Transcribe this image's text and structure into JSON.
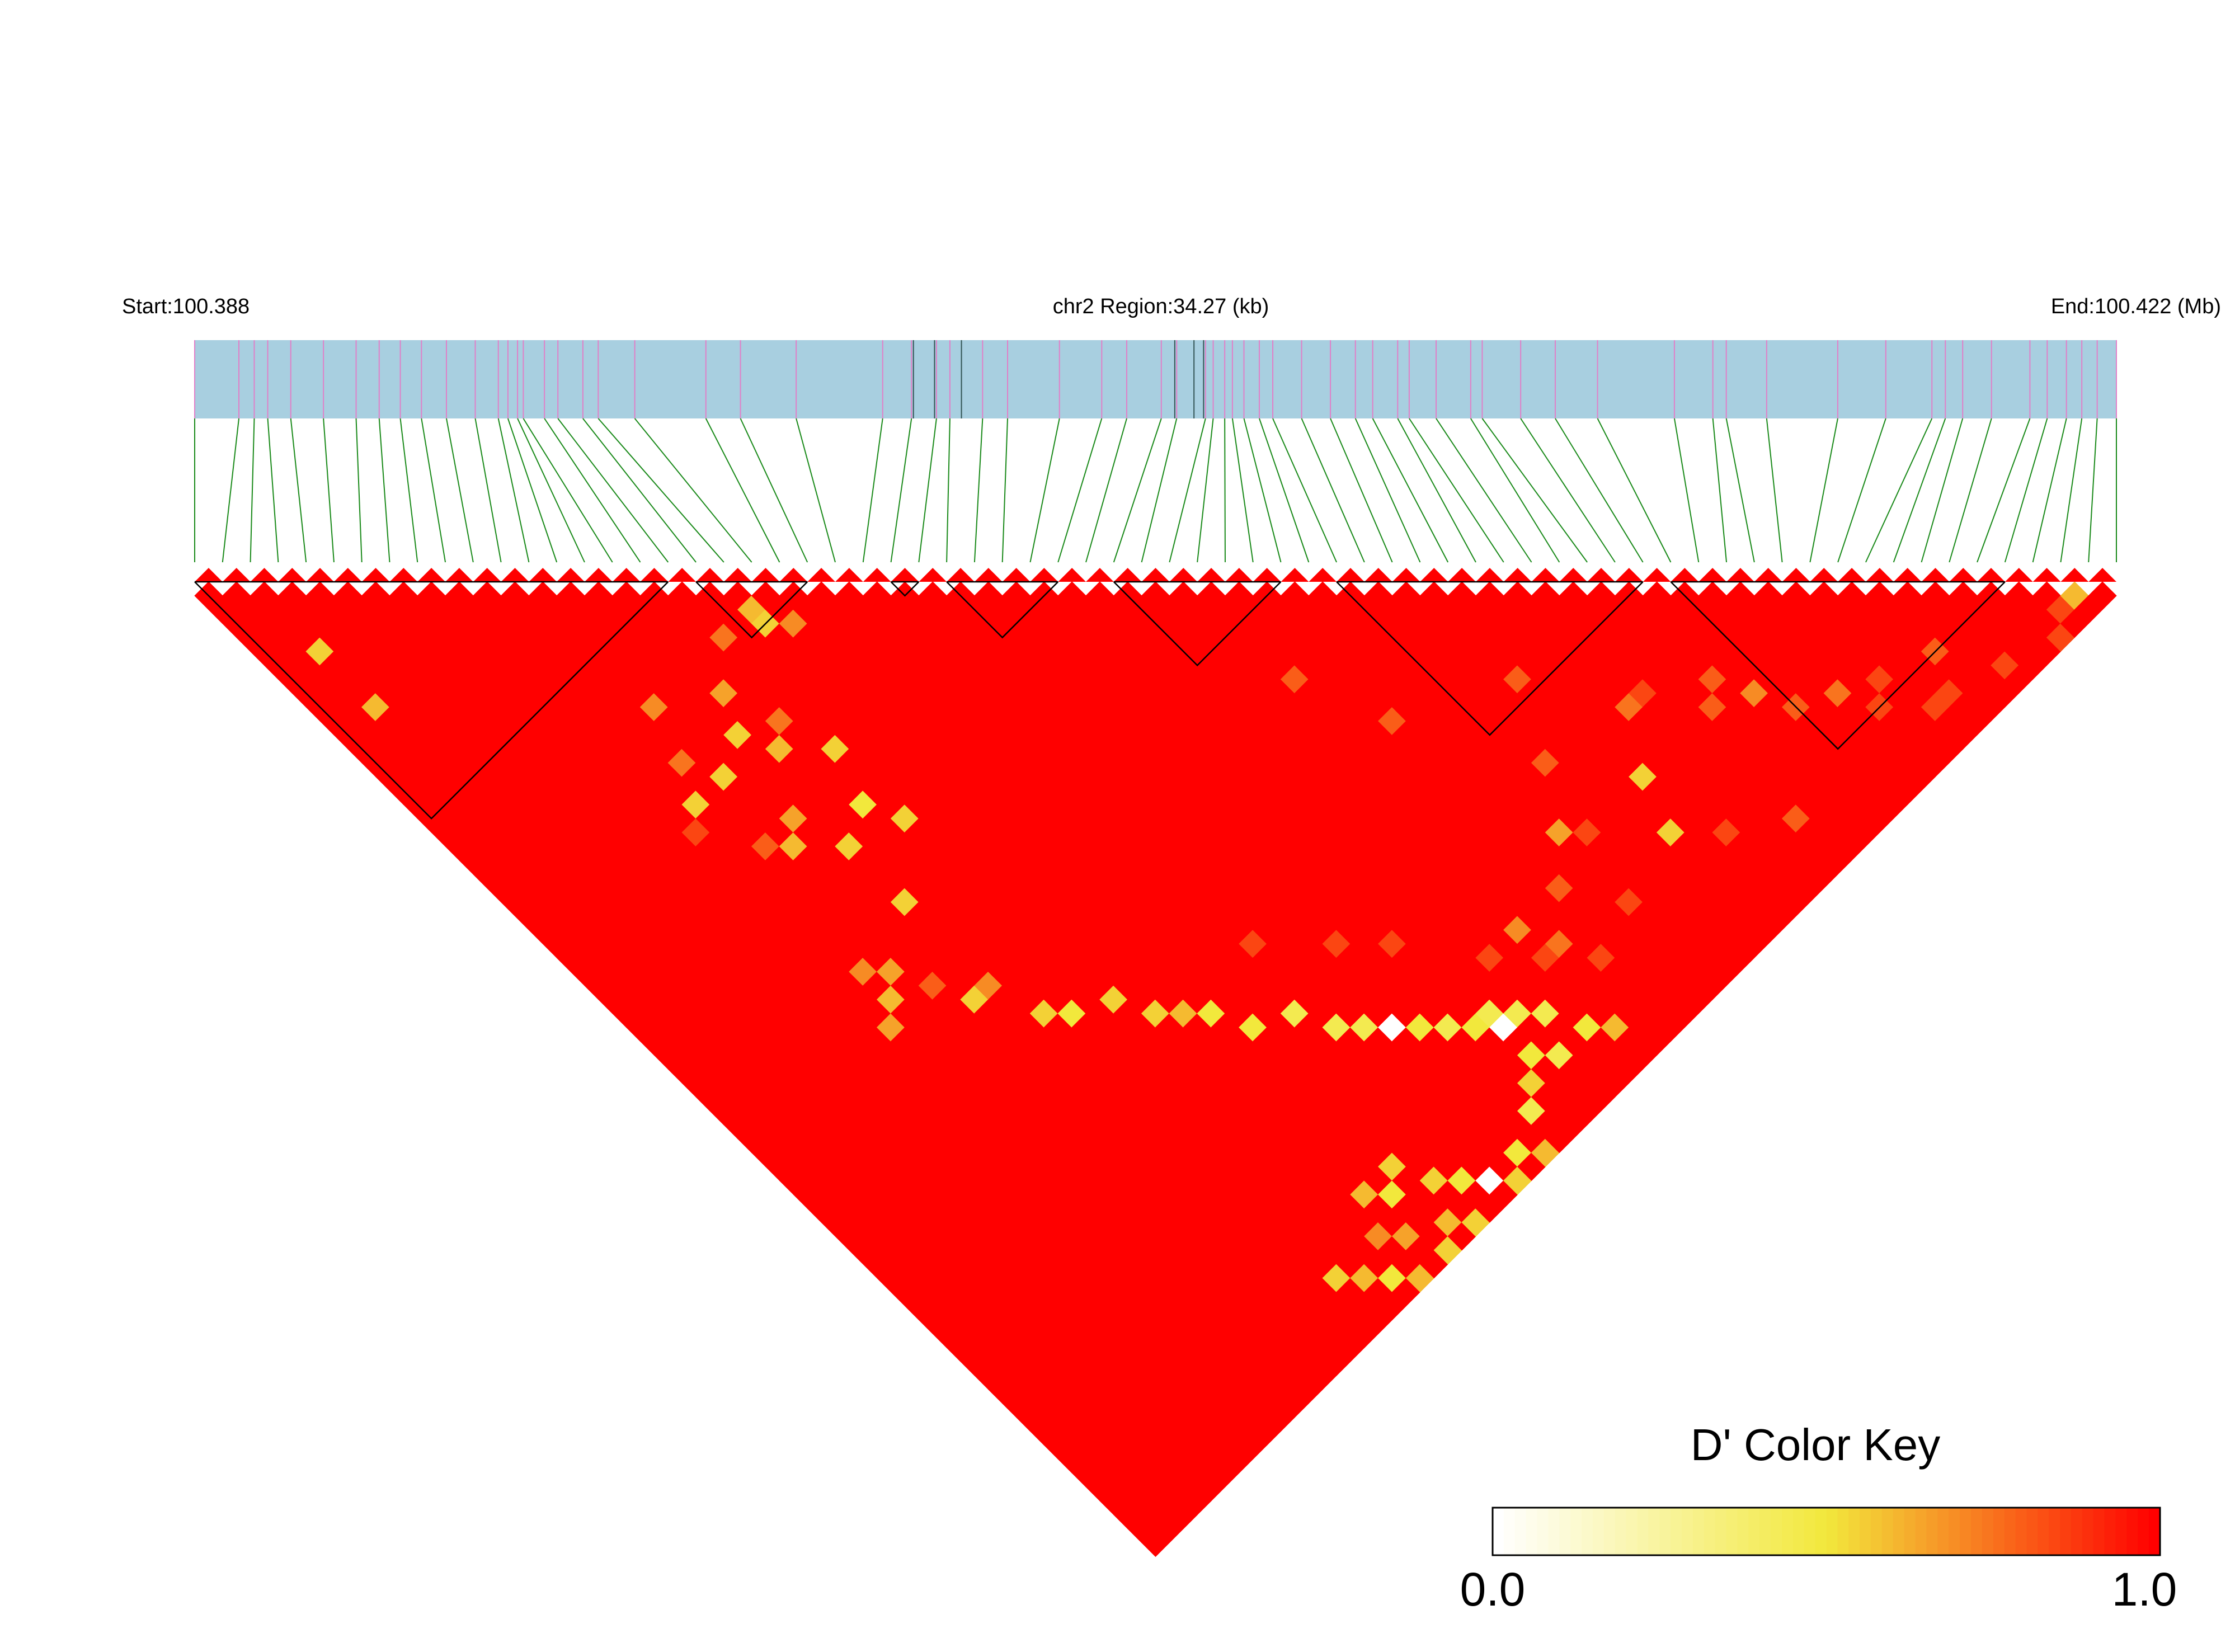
{
  "chart_data": {
    "type": "heatmap",
    "subtype": "linkage-disequilibrium-triangle",
    "header": {
      "start_label": "Start:100.388",
      "region_label": "chr2 Region:34.27 (kb)",
      "end_label": "End:100.422 (Mb)"
    },
    "snp_count": 70,
    "snp_positions_fraction": [
      0.0,
      0.023,
      0.031,
      0.038,
      0.05,
      0.067,
      0.084,
      0.096,
      0.107,
      0.118,
      0.131,
      0.146,
      0.158,
      0.163,
      0.168,
      0.171,
      0.182,
      0.189,
      0.202,
      0.21,
      0.229,
      0.266,
      0.284,
      0.313,
      0.358,
      0.373,
      0.386,
      0.393,
      0.41,
      0.423,
      0.45,
      0.472,
      0.485,
      0.503,
      0.511,
      0.526,
      0.53,
      0.536,
      0.54,
      0.546,
      0.554,
      0.561,
      0.576,
      0.591,
      0.604,
      0.613,
      0.626,
      0.632,
      0.646,
      0.664,
      0.67,
      0.69,
      0.708,
      0.73,
      0.77,
      0.79,
      0.797,
      0.818,
      0.855,
      0.88,
      0.904,
      0.911,
      0.92,
      0.935,
      0.955,
      0.964,
      0.974,
      0.982,
      0.99,
      1.0
    ],
    "gene_bar_dark_lines_fraction": [
      0.374,
      0.385,
      0.399,
      0.51,
      0.52,
      0.525
    ],
    "haplotype_blocks": [
      [
        0,
        17
      ],
      [
        18,
        22
      ],
      [
        25,
        26
      ],
      [
        27,
        31
      ],
      [
        32,
        32
      ],
      [
        33,
        39
      ],
      [
        41,
        52
      ],
      [
        53,
        65
      ]
    ],
    "pair_values": {
      "default": 1.0,
      "note": "D' for SNP pairs (i,j); pairs not listed are 1.0",
      "pairs": [
        [
          2,
          7,
          0.55
        ],
        [
          2,
          11,
          0.6
        ],
        [
          19,
          21,
          0.6
        ],
        [
          19,
          22,
          0.55
        ],
        [
          20,
          23,
          0.7
        ],
        [
          17,
          21,
          0.75
        ],
        [
          15,
          23,
          0.65
        ],
        [
          12,
          21,
          0.7
        ],
        [
          10,
          26,
          0.55
        ],
        [
          11,
          24,
          0.75
        ],
        [
          14,
          25,
          0.55
        ],
        [
          15,
          27,
          0.6
        ],
        [
          12,
          26,
          0.55
        ],
        [
          16,
          26,
          0.75
        ],
        [
          9,
          27,
          0.85
        ],
        [
          17,
          29,
          0.55
        ],
        [
          13,
          30,
          0.65
        ],
        [
          11,
          30,
          0.8
        ],
        [
          16,
          32,
          0.5
        ],
        [
          12,
          31,
          0.6
        ],
        [
          14,
          33,
          0.55
        ],
        [
          17,
          34,
          0.55
        ],
        [
          14,
          37,
          0.55
        ],
        [
          10,
          38,
          0.7
        ],
        [
          11,
          39,
          0.65
        ],
        [
          12,
          41,
          0.8
        ],
        [
          9,
          41,
          0.65
        ],
        [
          10,
          40,
          0.6
        ],
        [
          13,
          43,
          0.55
        ],
        [
          14,
          43,
          0.7
        ],
        [
          15,
          46,
          0.55
        ],
        [
          16,
          47,
          0.5
        ],
        [
          18,
          48,
          0.55
        ],
        [
          19,
          50,
          0.55
        ],
        [
          20,
          51,
          0.6
        ],
        [
          21,
          52,
          0.5
        ],
        [
          22,
          54,
          0.5
        ],
        [
          24,
          55,
          0.45
        ],
        [
          25,
          57,
          0.45
        ],
        [
          26,
          58,
          0.45
        ],
        [
          27,
          59,
          0.0
        ],
        [
          28,
          60,
          0.5
        ],
        [
          29,
          61,
          0.45
        ],
        [
          30,
          62,
          0.5
        ],
        [
          31,
          63,
          0.0
        ],
        [
          31,
          62,
          0.45
        ],
        [
          32,
          63,
          0.45
        ],
        [
          33,
          64,
          0.45
        ],
        [
          34,
          66,
          0.5
        ],
        [
          35,
          67,
          0.6
        ],
        [
          22,
          64,
          0.55
        ],
        [
          20,
          64,
          0.6
        ],
        [
          21,
          65,
          0.5
        ],
        [
          23,
          66,
          0.55
        ],
        [
          24,
          67,
          0.5
        ],
        [
          25,
          68,
          0.0
        ],
        [
          26,
          69,
          0.55
        ],
        [
          19,
          66,
          0.7
        ],
        [
          20,
          67,
          0.65
        ],
        [
          18,
          68,
          0.5
        ],
        [
          19,
          69,
          0.6
        ],
        [
          21,
          69,
          0.55
        ],
        [
          17,
          67,
          0.6
        ],
        [
          16,
          66,
          0.55
        ],
        [
          22,
          68,
          0.6
        ],
        [
          23,
          69,
          0.55
        ],
        [
          28,
          69,
          0.6
        ],
        [
          27,
          68,
          0.5
        ],
        [
          29,
          67,
          0.45
        ],
        [
          30,
          66,
          0.55
        ],
        [
          31,
          65,
          0.5
        ],
        [
          32,
          66,
          0.45
        ],
        [
          35,
          60,
          0.7
        ],
        [
          36,
          62,
          0.75
        ],
        [
          40,
          58,
          0.65
        ],
        [
          45,
          59,
          0.55
        ],
        [
          47,
          56,
          0.75
        ],
        [
          52,
          60,
          0.7
        ],
        [
          55,
          63,
          0.75
        ],
        [
          50,
          59,
          0.8
        ],
        [
          36,
          43,
          0.8
        ],
        [
          38,
          48,
          0.8
        ],
        [
          42,
          55,
          0.8
        ],
        [
          44,
          51,
          0.8
        ],
        [
          51,
          58,
          0.8
        ],
        [
          48,
          56,
          0.85
        ],
        [
          57,
          64,
          0.85
        ],
        [
          60,
          65,
          0.8
        ],
        [
          53,
          62,
          0.8
        ],
        [
          44,
          62,
          0.55
        ],
        [
          38,
          60,
          0.8
        ],
        [
          40,
          63,
          0.85
        ],
        [
          46,
          64,
          0.85
        ],
        [
          49,
          66,
          0.8
        ],
        [
          58,
          67,
          0.85
        ],
        [
          41,
          59,
          0.85
        ],
        [
          67,
          68,
          0.6
        ],
        [
          66,
          68,
          0.85
        ],
        [
          65,
          69,
          0.85
        ],
        [
          62,
          68,
          0.85
        ],
        [
          59,
          67,
          0.85
        ],
        [
          56,
          65,
          0.85
        ],
        [
          30,
          56,
          0.85
        ],
        [
          28,
          54,
          0.85
        ],
        [
          25,
          51,
          0.85
        ],
        [
          33,
          60,
          0.85
        ],
        [
          35,
          62,
          0.85
        ],
        [
          37,
          64,
          0.85
        ]
      ]
    },
    "color_key": {
      "title": "D' Color Key",
      "min_label": "0.0",
      "max_label": "1.0",
      "min_color": "#ffffff",
      "mid_color": "#f2e83c",
      "max_color": "#ff0000"
    },
    "colors": {
      "gene_bar": "#a8cfe0",
      "snp_tick": "#e080c8",
      "connector": "#1a8a1a",
      "block_outline": "#000000"
    }
  }
}
